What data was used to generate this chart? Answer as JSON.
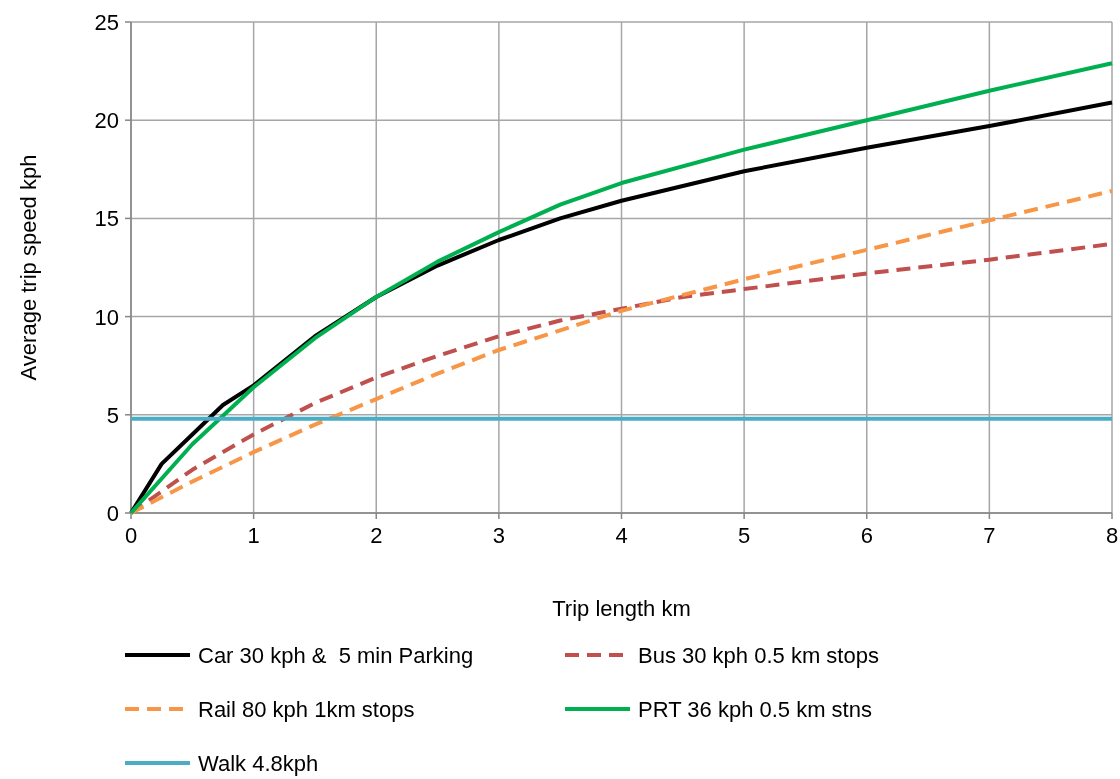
{
  "chart_data": {
    "type": "line",
    "xlabel": "Trip length km",
    "ylabel": "Average trip speed kph",
    "xlim": [
      0,
      8
    ],
    "ylim": [
      0,
      25
    ],
    "xticks": [
      0,
      1,
      2,
      3,
      4,
      5,
      6,
      7,
      8
    ],
    "yticks": [
      0,
      5,
      10,
      15,
      20,
      25
    ],
    "grid": true,
    "legend": "bottom",
    "series": [
      {
        "name": "Car 30 kph &  5 min Parking",
        "color": "#000000",
        "line_style": "solid",
        "x": [
          0,
          0.25,
          0.5,
          0.75,
          1,
          1.5,
          2,
          2.5,
          3,
          3.5,
          4,
          5,
          6,
          7,
          8
        ],
        "values": [
          0,
          2.5,
          4,
          5.5,
          6.5,
          9,
          11,
          12.6,
          13.9,
          15,
          15.9,
          17.4,
          18.6,
          19.7,
          20.9
        ]
      },
      {
        "name": "Bus 30 kph 0.5 km stops",
        "color": "#c0504d",
        "line_style": "dashed",
        "x": [
          0,
          0.5,
          1,
          1.5,
          2,
          2.5,
          3,
          3.5,
          4,
          4.5,
          5,
          6,
          7,
          8
        ],
        "values": [
          0,
          2.2,
          4,
          5.6,
          6.9,
          8,
          9,
          9.8,
          10.4,
          11,
          11.4,
          12.2,
          12.9,
          13.7
        ]
      },
      {
        "name": "Rail 80 kph 1km stops",
        "color": "#f79646",
        "line_style": "dashed",
        "x": [
          0,
          0.5,
          1,
          1.5,
          2,
          2.5,
          3,
          3.5,
          4,
          5,
          6,
          7,
          8
        ],
        "values": [
          0,
          1.6,
          3.1,
          4.5,
          5.8,
          7.1,
          8.3,
          9.3,
          10.3,
          11.9,
          13.4,
          14.9,
          16.4
        ]
      },
      {
        "name": "PRT 36 kph 0.5 km stns",
        "color": "#00b050",
        "line_style": "solid",
        "x": [
          0,
          0.5,
          1,
          1.5,
          2,
          2.5,
          3,
          3.5,
          4,
          5,
          6,
          7,
          8
        ],
        "values": [
          0,
          3.5,
          6.4,
          8.9,
          11,
          12.8,
          14.3,
          15.7,
          16.8,
          18.5,
          20,
          21.5,
          22.9
        ]
      },
      {
        "name": "Walk 4.8kph",
        "color": "#4bacc6",
        "line_style": "solid",
        "x": [
          0,
          8
        ],
        "values": [
          4.8,
          4.8
        ]
      }
    ]
  }
}
